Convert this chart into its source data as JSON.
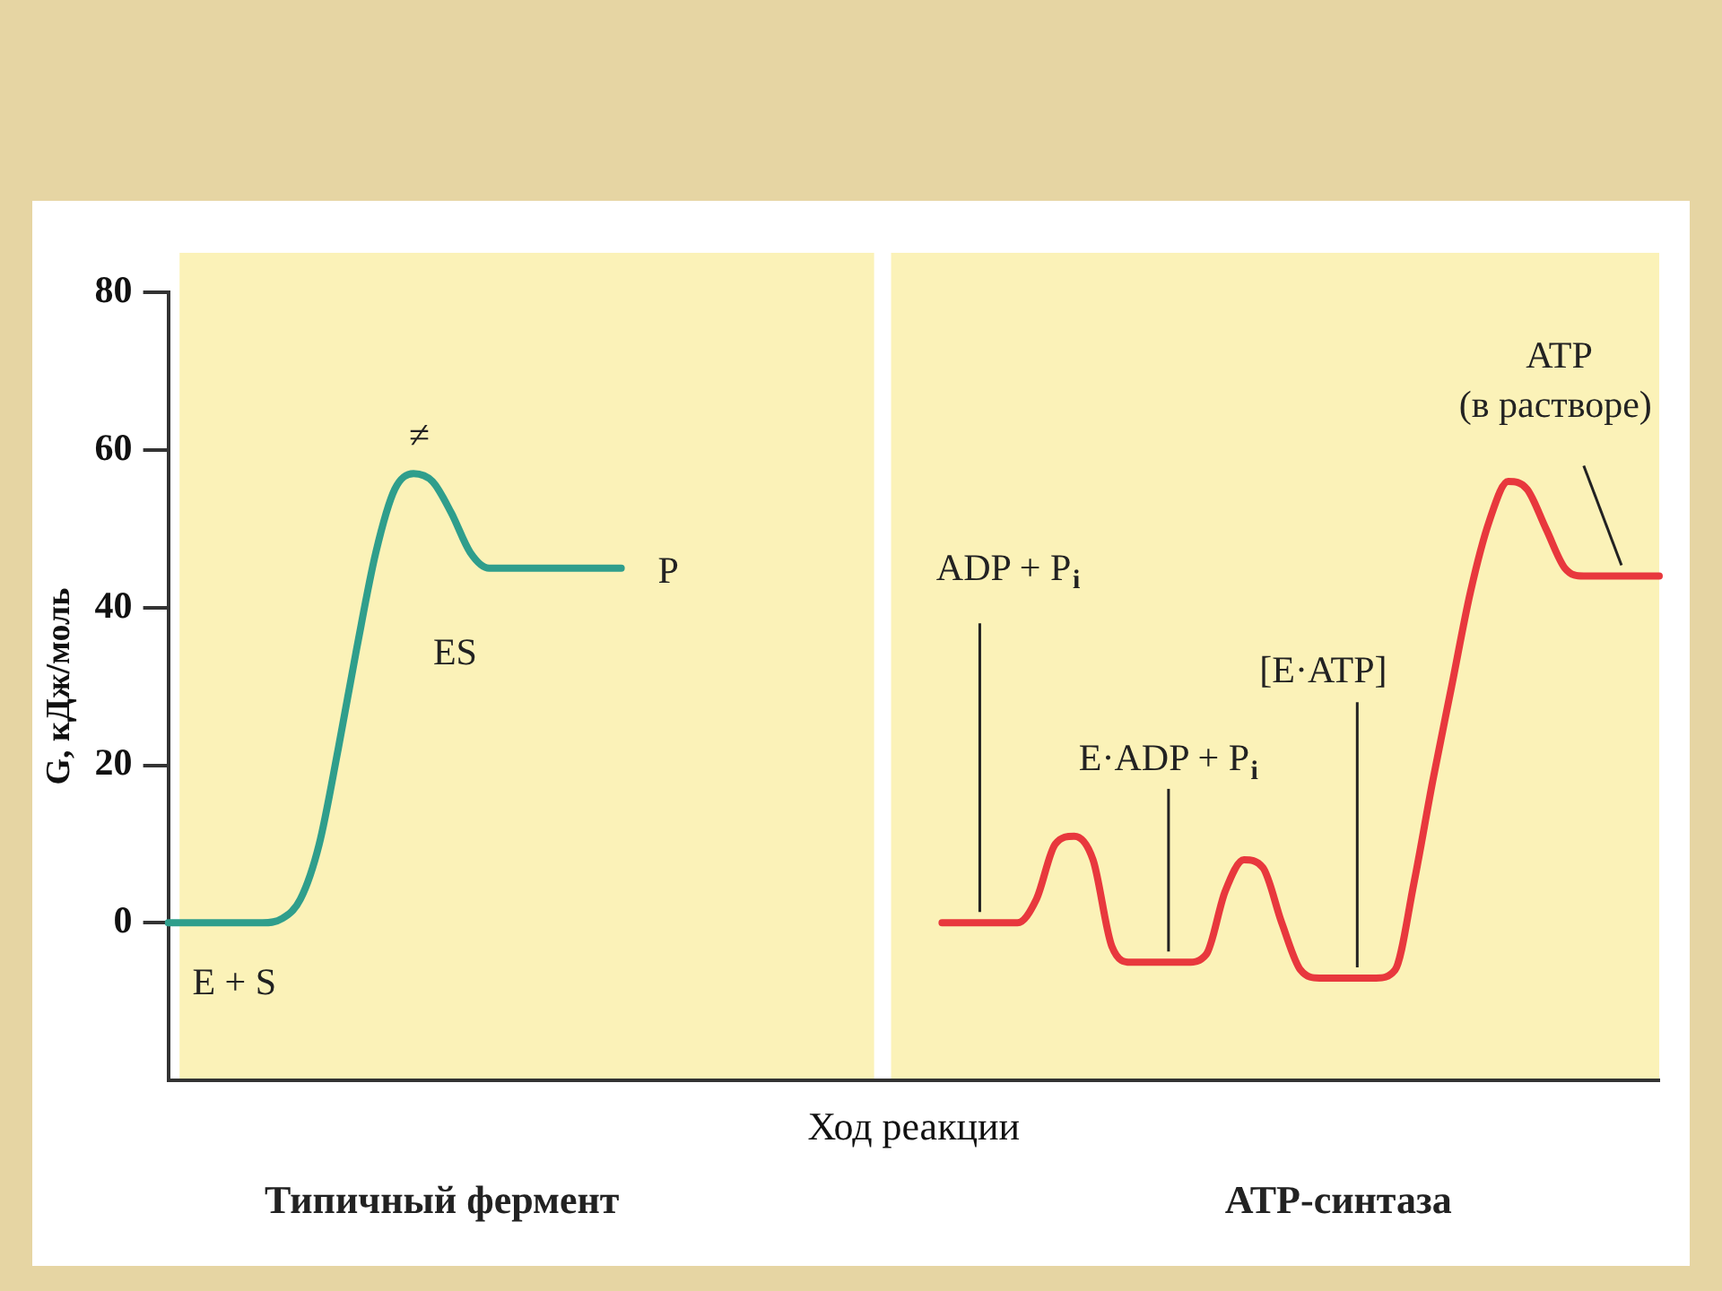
{
  "chart_data": {
    "type": "line",
    "xlabel": "Ход реакции",
    "ylabel": "G, кДж/моль",
    "categories": [
      null,
      null,
      null,
      null,
      null,
      null,
      null,
      null,
      null,
      null,
      null,
      null,
      null,
      null,
      null,
      null,
      null,
      null,
      null,
      null,
      null,
      null,
      null,
      null,
      null,
      null,
      null,
      null,
      null,
      null,
      null,
      null,
      null,
      null,
      null,
      null,
      null,
      null,
      null,
      null,
      null,
      null,
      null,
      null,
      null,
      null,
      null,
      null,
      null,
      null,
      null,
      null,
      null,
      null,
      null,
      null,
      null,
      null,
      null,
      null,
      null,
      null,
      null,
      null,
      null,
      null,
      null,
      null,
      null,
      null,
      null,
      null,
      null,
      null,
      null,
      null,
      null,
      null,
      null,
      null
    ],
    "series": [
      {
        "color": "#2f9e8c",
        "values": [
          0,
          0,
          0,
          0,
          0,
          0,
          0.5,
          3,
          10,
          22,
          35,
          47,
          55,
          57,
          56,
          52,
          47,
          45,
          45,
          45,
          45,
          45,
          45,
          45,
          45,
          null,
          null,
          null,
          null,
          null,
          null,
          null,
          null,
          null,
          null,
          null,
          null,
          null,
          null,
          null,
          null,
          null,
          null,
          null,
          null,
          null,
          null,
          null,
          null,
          null,
          null,
          null,
          null,
          null,
          null,
          null,
          null,
          null,
          null,
          null,
          null,
          null,
          null,
          null,
          null,
          null,
          null,
          null,
          null,
          null,
          null,
          null,
          null,
          null,
          null,
          null,
          null,
          null,
          null,
          null
        ]
      },
      {
        "color": "#e8383d",
        "values": [
          null,
          null,
          null,
          null,
          null,
          null,
          null,
          null,
          null,
          null,
          null,
          null,
          null,
          null,
          null,
          null,
          null,
          null,
          null,
          null,
          null,
          null,
          null,
          null,
          null,
          null,
          null,
          null,
          null,
          null,
          null,
          null,
          null,
          null,
          null,
          null,
          null,
          null,
          null,
          null,
          null,
          0,
          0,
          0,
          0,
          0,
          3,
          10,
          11,
          8,
          -3,
          -5,
          -5,
          -5,
          -5,
          -4,
          4,
          8,
          7,
          0,
          -6,
          -7,
          -7,
          -7,
          -7,
          -6,
          5,
          18,
          30,
          42,
          51,
          56,
          55,
          50,
          45,
          44,
          44,
          44,
          44,
          44
        ]
      }
    ],
    "ylim": [
      -20,
      80
    ],
    "yticks": [
      0,
      20,
      40,
      60,
      80
    ],
    "tick_labels": "y",
    "marker": "none",
    "annotations": [
      "≠",
      "ES",
      "P",
      "E + S",
      "ADP + P$_{i}$",
      "E·ADP + P$_{i}$",
      "[E·ATP]",
      "ATP",
      "(в растворе)",
      "Типичный фермент",
      "АТР-синтаза"
    ]
  }
}
